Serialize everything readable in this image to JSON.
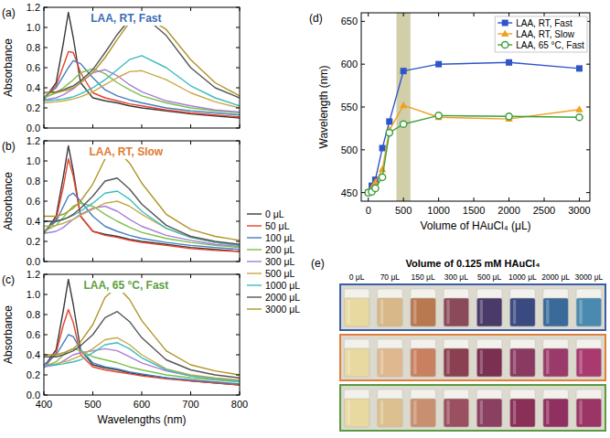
{
  "chart_data": [
    {
      "type": "line",
      "label": "(a)",
      "title": "LAA, RT, Fast",
      "color": "#3a6db5",
      "ylabel": "Absorbance",
      "tick_labels": "y",
      "x": [
        400,
        425,
        440,
        450,
        460,
        475,
        500,
        525,
        550,
        575,
        600,
        650,
        700,
        750,
        800
      ],
      "xlim": [
        400,
        800
      ],
      "xticks": [
        400,
        500,
        600,
        700,
        800
      ],
      "ylim": [
        0,
        1.2
      ],
      "yticks": [
        {
          "value": 0,
          "label": "0.0"
        },
        0.2,
        0.4,
        0.6,
        0.8,
        {
          "value": 1,
          "label": "1.0"
        },
        1.2
      ],
      "series": [
        {
          "color": "#3a3a3a",
          "values": [
            0.28,
            0.45,
            0.85,
            1.15,
            0.9,
            0.45,
            0.3,
            0.27,
            0.25,
            0.22,
            0.2,
            0.17,
            0.14,
            0.12,
            0.1
          ]
        },
        {
          "color": "#e8412c",
          "values": [
            0.3,
            0.42,
            0.62,
            0.76,
            0.75,
            0.55,
            0.35,
            0.3,
            0.27,
            0.24,
            0.22,
            0.18,
            0.15,
            0.13,
            0.11
          ]
        },
        {
          "color": "#3f7fbf",
          "values": [
            0.3,
            0.4,
            0.52,
            0.6,
            0.67,
            0.64,
            0.5,
            0.38,
            0.32,
            0.28,
            0.25,
            0.2,
            0.17,
            0.15,
            0.13
          ]
        },
        {
          "color": "#7cc04a",
          "values": [
            0.3,
            0.35,
            0.4,
            0.44,
            0.48,
            0.55,
            0.59,
            0.54,
            0.45,
            0.38,
            0.32,
            0.25,
            0.2,
            0.17,
            0.15
          ]
        },
        {
          "color": "#a67ed6",
          "values": [
            0.28,
            0.3,
            0.33,
            0.36,
            0.39,
            0.45,
            0.55,
            0.58,
            0.52,
            0.43,
            0.36,
            0.27,
            0.22,
            0.18,
            0.16
          ]
        },
        {
          "color": "#c9a84a",
          "values": [
            0.25,
            0.26,
            0.27,
            0.28,
            0.29,
            0.31,
            0.36,
            0.43,
            0.5,
            0.56,
            0.57,
            0.48,
            0.35,
            0.26,
            0.2
          ]
        },
        {
          "color": "#3cbcbc",
          "values": [
            0.27,
            0.28,
            0.29,
            0.3,
            0.31,
            0.34,
            0.4,
            0.48,
            0.58,
            0.68,
            0.72,
            0.6,
            0.42,
            0.3,
            0.22
          ]
        },
        {
          "color": "#555555",
          "values": [
            0.35,
            0.36,
            0.38,
            0.4,
            0.42,
            0.47,
            0.58,
            0.75,
            0.93,
            1.08,
            1.13,
            0.92,
            0.6,
            0.4,
            0.3
          ]
        },
        {
          "color": "#b09428",
          "values": [
            0.35,
            0.35,
            0.37,
            0.38,
            0.4,
            0.45,
            0.55,
            0.7,
            0.88,
            1.05,
            1.13,
            0.98,
            0.68,
            0.45,
            0.32
          ]
        }
      ]
    },
    {
      "type": "line",
      "label": "(b)",
      "title": "LAA, RT, Slow",
      "color": "#e07b30",
      "ylabel": "Absorbance",
      "tick_labels": "y",
      "legend": "right",
      "x": [
        400,
        425,
        440,
        450,
        460,
        475,
        500,
        525,
        550,
        575,
        600,
        650,
        700,
        750,
        800
      ],
      "xlim": [
        400,
        800
      ],
      "xticks": [
        400,
        500,
        600,
        700,
        800
      ],
      "ylim": [
        0,
        1.2
      ],
      "yticks": [
        {
          "value": 0,
          "label": "0.0"
        },
        0.2,
        0.4,
        0.6,
        0.8,
        {
          "value": 1,
          "label": "1.0"
        },
        1.2
      ],
      "series": [
        {
          "name": "0 μL",
          "color": "#3a3a3a",
          "values": [
            0.28,
            0.45,
            0.85,
            1.15,
            0.9,
            0.45,
            0.3,
            0.27,
            0.25,
            0.22,
            0.2,
            0.17,
            0.14,
            0.12,
            0.1
          ]
        },
        {
          "name": "50 μL",
          "color": "#e8412c",
          "values": [
            0.28,
            0.42,
            0.75,
            1.02,
            0.85,
            0.45,
            0.3,
            0.26,
            0.24,
            0.21,
            0.19,
            0.16,
            0.13,
            0.11,
            0.1
          ]
        },
        {
          "name": "100 μL",
          "color": "#3f7fbf",
          "values": [
            0.3,
            0.4,
            0.55,
            0.65,
            0.68,
            0.6,
            0.45,
            0.35,
            0.3,
            0.26,
            0.23,
            0.19,
            0.16,
            0.14,
            0.12
          ]
        },
        {
          "name": "200 μL",
          "color": "#7cc04a",
          "values": [
            0.3,
            0.36,
            0.44,
            0.5,
            0.55,
            0.58,
            0.55,
            0.47,
            0.4,
            0.34,
            0.29,
            0.23,
            0.19,
            0.16,
            0.14
          ]
        },
        {
          "name": "300 μL",
          "color": "#a67ed6",
          "values": [
            0.28,
            0.3,
            0.34,
            0.38,
            0.42,
            0.47,
            0.53,
            0.55,
            0.5,
            0.42,
            0.35,
            0.26,
            0.21,
            0.17,
            0.15
          ]
        },
        {
          "name": "500 μL",
          "color": "#c9a84a",
          "values": [
            0.35,
            0.36,
            0.38,
            0.4,
            0.42,
            0.46,
            0.52,
            0.58,
            0.6,
            0.55,
            0.47,
            0.33,
            0.24,
            0.19,
            0.16
          ]
        },
        {
          "name": "1000 μL",
          "color": "#3cbcbc",
          "values": [
            0.4,
            0.4,
            0.42,
            0.44,
            0.46,
            0.5,
            0.58,
            0.68,
            0.7,
            0.62,
            0.5,
            0.33,
            0.24,
            0.19,
            0.16
          ]
        },
        {
          "name": "2000 μL",
          "color": "#555555",
          "values": [
            0.4,
            0.4,
            0.42,
            0.44,
            0.47,
            0.53,
            0.65,
            0.8,
            0.83,
            0.72,
            0.57,
            0.36,
            0.25,
            0.2,
            0.17
          ]
        },
        {
          "name": "3000 μL",
          "color": "#b09428",
          "values": [
            0.45,
            0.45,
            0.47,
            0.5,
            0.53,
            0.6,
            0.77,
            1.02,
            1.1,
            0.98,
            0.78,
            0.47,
            0.32,
            0.25,
            0.21
          ]
        }
      ]
    },
    {
      "type": "line",
      "label": "(c)",
      "title": "LAA, 65 °C, Fast",
      "color": "#5aa040",
      "ylabel": "Absorbance",
      "xlabel": "Wavelengths (nm)",
      "x": [
        400,
        425,
        440,
        450,
        460,
        475,
        500,
        525,
        550,
        575,
        600,
        650,
        700,
        750,
        800
      ],
      "xlim": [
        400,
        800
      ],
      "xticks": [
        400,
        500,
        600,
        700,
        800
      ],
      "ylim": [
        0,
        1.2
      ],
      "yticks": [
        {
          "value": 0,
          "label": "0.0"
        },
        0.2,
        0.4,
        0.6,
        0.8,
        {
          "value": 1,
          "label": "1.0"
        },
        1.2
      ],
      "series": [
        {
          "color": "#3a3a3a",
          "values": [
            0.28,
            0.45,
            0.85,
            1.15,
            0.9,
            0.45,
            0.3,
            0.27,
            0.25,
            0.22,
            0.2,
            0.17,
            0.14,
            0.12,
            0.1
          ]
        },
        {
          "color": "#e8412c",
          "values": [
            0.27,
            0.42,
            0.7,
            0.85,
            0.72,
            0.4,
            0.28,
            0.25,
            0.23,
            0.21,
            0.19,
            0.16,
            0.14,
            0.12,
            0.1
          ]
        },
        {
          "color": "#3f7fbf",
          "values": [
            0.3,
            0.4,
            0.52,
            0.6,
            0.58,
            0.45,
            0.32,
            0.28,
            0.26,
            0.23,
            0.21,
            0.17,
            0.15,
            0.13,
            0.11
          ]
        },
        {
          "color": "#7cc04a",
          "values": [
            0.28,
            0.33,
            0.4,
            0.44,
            0.46,
            0.44,
            0.38,
            0.35,
            0.32,
            0.28,
            0.25,
            0.2,
            0.17,
            0.15,
            0.13
          ]
        },
        {
          "color": "#a67ed6",
          "values": [
            0.28,
            0.3,
            0.34,
            0.37,
            0.4,
            0.42,
            0.44,
            0.46,
            0.44,
            0.38,
            0.32,
            0.24,
            0.19,
            0.16,
            0.14
          ]
        },
        {
          "color": "#c9a84a",
          "values": [
            0.3,
            0.31,
            0.33,
            0.34,
            0.36,
            0.39,
            0.46,
            0.55,
            0.57,
            0.5,
            0.4,
            0.26,
            0.2,
            0.17,
            0.15
          ]
        },
        {
          "color": "#3cbcbc",
          "values": [
            0.3,
            0.3,
            0.31,
            0.32,
            0.33,
            0.35,
            0.42,
            0.5,
            0.52,
            0.46,
            0.37,
            0.25,
            0.19,
            0.16,
            0.14
          ]
        },
        {
          "color": "#555555",
          "values": [
            0.38,
            0.38,
            0.4,
            0.42,
            0.44,
            0.49,
            0.6,
            0.77,
            0.83,
            0.73,
            0.57,
            0.35,
            0.25,
            0.2,
            0.17
          ]
        },
        {
          "color": "#b09428",
          "values": [
            0.4,
            0.4,
            0.42,
            0.44,
            0.46,
            0.53,
            0.7,
            0.97,
            1.08,
            0.95,
            0.74,
            0.44,
            0.3,
            0.24,
            0.2
          ]
        }
      ]
    },
    {
      "type": "line",
      "label": "(d)",
      "xlabel": "Volume of HAuCl₄ (μL)",
      "ylabel": "Wavelength (nm)",
      "legend": "upper right",
      "band": [
        400,
        600
      ],
      "x": [
        0,
        50,
        100,
        200,
        300,
        500,
        1000,
        2000,
        3000
      ],
      "xlim": [
        -100,
        3150
      ],
      "xticks": [
        0,
        500,
        1000,
        1500,
        2000,
        2500,
        3000
      ],
      "ylim": [
        440,
        660
      ],
      "yticks": [
        450,
        500,
        550,
        600,
        650
      ],
      "series": [
        {
          "name": "LAA, RT, Fast",
          "color": "#2f55c8",
          "marker": "square",
          "line_style": "solid",
          "values": [
            450,
            458,
            465,
            502,
            533,
            592,
            600,
            602,
            595
          ]
        },
        {
          "name": "LAA, RT, Slow",
          "color": "#f0a020",
          "marker": "triangle",
          "line_style": "solid",
          "values": [
            450,
            455,
            462,
            477,
            523,
            552,
            538,
            536,
            547
          ]
        },
        {
          "name": "LAA, 65 °C, Fast",
          "color": "#3fa03f",
          "marker": "open-circle",
          "line_style": "solid",
          "values": [
            450,
            451,
            455,
            468,
            520,
            530,
            540,
            539,
            538
          ]
        }
      ]
    }
  ],
  "photo": {
    "label": "(e)",
    "title": "Volume of 0.125 mM HAuCl₄",
    "labels": [
      "0 μL",
      "70 μL",
      "150 μL",
      "300 μL",
      "500 μL",
      "1000 μL",
      "2000 μL",
      "3000 μL"
    ],
    "rows": [
      {
        "color": "#3a5fa8",
        "colors": [
          "#e8d9a0",
          "#d8b888",
          "#b87850",
          "#8a4a5a",
          "#4a3a6a",
          "#3a4a80",
          "#3a6a9a",
          "#4a8ab0"
        ]
      },
      {
        "color": "#e0803a",
        "colors": [
          "#e8d9a0",
          "#e0b890",
          "#c88060",
          "#8a4050",
          "#7a3050",
          "#8a3a60",
          "#9a3a6a",
          "#a83a70"
        ]
      },
      {
        "color": "#5a9a40",
        "colors": [
          "#e8d9a0",
          "#dcc090",
          "#c89070",
          "#9a5060",
          "#8a4060",
          "#8a3058",
          "#903060",
          "#9a3565"
        ]
      }
    ]
  }
}
